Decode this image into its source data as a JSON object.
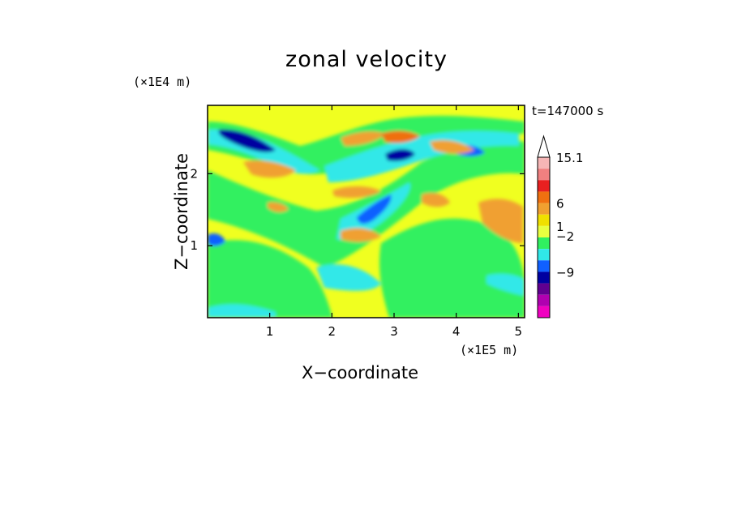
{
  "chart_data": {
    "type": "heatmap",
    "title": "zonal velocity",
    "xlabel": "X−coordinate",
    "ylabel": "Z−coordinate",
    "x_multiplier": "(×1E5 m)",
    "y_multiplier": "(×1E4 m)",
    "time_label": "t=147000 s",
    "xlim": [
      0,
      5.1
    ],
    "ylim": [
      0,
      2.95
    ],
    "x_ticks": [
      "1",
      "2",
      "3",
      "4",
      "5"
    ],
    "x_tick_values": [
      1,
      2,
      3,
      4,
      5
    ],
    "y_ticks": [
      "1",
      "2"
    ],
    "y_tick_values": [
      1,
      2
    ],
    "colorbar": {
      "labels": [
        "15.1",
        "6",
        "1",
        "−2",
        "−9"
      ],
      "colors_top_to_bottom": [
        "#f6b6b6",
        "#f08080",
        "#e82020",
        "#f07010",
        "#f0a030",
        "#f0e000",
        "#e8ff40",
        "#30f060",
        "#30e8e8",
        "#1060ff",
        "#0000a0",
        "#600090",
        "#b000b0",
        "#f000c0"
      ]
    }
  }
}
